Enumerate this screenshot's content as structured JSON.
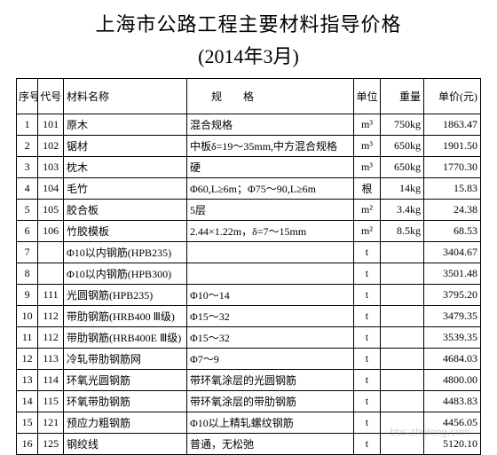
{
  "title": "上海市公路工程主要材料指导价格",
  "subtitle": "(2014年3月)",
  "watermark": "bbs.zhulong.com",
  "columns": {
    "seq": "序号",
    "code": "代号",
    "name": "材料名称",
    "spec": "规格",
    "unit": "单位",
    "weight": "重量",
    "price": "单价(元)"
  },
  "rows": [
    {
      "seq": "1",
      "code": "101",
      "name": "原木",
      "spec": "混合规格",
      "unit": "m³",
      "weight": "750kg",
      "price": "1863.47"
    },
    {
      "seq": "2",
      "code": "102",
      "name": "锯材",
      "spec": "中板δ=19～35mm,中方混合规格",
      "unit": "m³",
      "weight": "650kg",
      "price": "1901.50"
    },
    {
      "seq": "3",
      "code": "103",
      "name": "枕木",
      "spec": "硬",
      "unit": "m³",
      "weight": "650kg",
      "price": "1770.30"
    },
    {
      "seq": "4",
      "code": "104",
      "name": "毛竹",
      "spec": "Φ60,L≥6m；Φ75～90,L≥6m",
      "unit": "根",
      "weight": "14kg",
      "price": "15.83"
    },
    {
      "seq": "5",
      "code": "105",
      "name": "胶合板",
      "spec": "5层",
      "unit": "m²",
      "weight": "3.4kg",
      "price": "24.38"
    },
    {
      "seq": "6",
      "code": "106",
      "name": "竹胶模板",
      "spec": "2.44×1.22m，δ=7～15mm",
      "unit": "m²",
      "weight": "8.5kg",
      "price": "68.53"
    },
    {
      "seq": "7",
      "code": "",
      "name": "Φ10以内钢筋(HPB235)",
      "spec": "",
      "unit": "t",
      "weight": "",
      "price": "3404.67"
    },
    {
      "seq": "8",
      "code": "",
      "name": "Φ10以内钢筋(HPB300)",
      "spec": "",
      "unit": "t",
      "weight": "",
      "price": "3501.48"
    },
    {
      "seq": "9",
      "code": "111",
      "name": "光圆钢筋(HPB235)",
      "spec": "Φ10～14",
      "unit": "t",
      "weight": "",
      "price": "3795.20"
    },
    {
      "seq": "10",
      "code": "112",
      "name": "带肋钢筋(HRB400 Ⅲ级)",
      "spec": "Φ15～32",
      "unit": "t",
      "weight": "",
      "price": "3479.35"
    },
    {
      "seq": "11",
      "code": "112",
      "name": "带肋钢筋(HRB400E Ⅲ级)",
      "spec": "Φ15～32",
      "unit": "t",
      "weight": "",
      "price": "3539.35"
    },
    {
      "seq": "12",
      "code": "113",
      "name": "冷轧带肋钢筋网",
      "spec": "Φ7～9",
      "unit": "t",
      "weight": "",
      "price": "4684.03"
    },
    {
      "seq": "13",
      "code": "114",
      "name": "环氧光圆钢筋",
      "spec": "带环氧涂层的光圆钢筋",
      "unit": "t",
      "weight": "",
      "price": "4800.00"
    },
    {
      "seq": "14",
      "code": "115",
      "name": "环氧带肋钢筋",
      "spec": "带环氧涂层的带肋钢筋",
      "unit": "t",
      "weight": "",
      "price": "4483.83"
    },
    {
      "seq": "15",
      "code": "121",
      "name": "预应力粗钢筋",
      "spec": "Φ10以上精轧螺纹钢筋",
      "unit": "t",
      "weight": "",
      "price": "4456.05"
    },
    {
      "seq": "16",
      "code": "125",
      "name": "钢绞线",
      "spec": "普通，无松弛",
      "unit": "t",
      "weight": "",
      "price": "5120.10"
    }
  ],
  "style": {
    "title_fontsize": 22,
    "body_fontsize": 12,
    "border_color": "#000000",
    "background": "#ffffff",
    "text_color": "#000000",
    "font_family": "SimSun"
  }
}
